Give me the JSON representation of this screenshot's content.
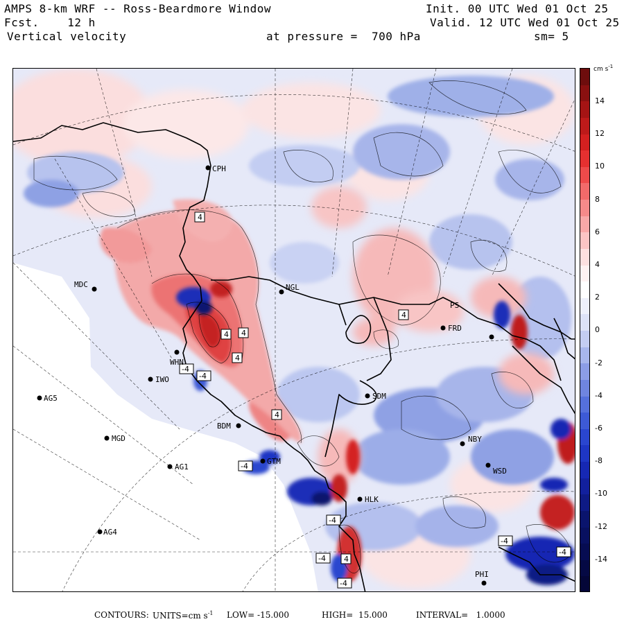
{
  "header": {
    "title": "AMPS 8-km WRF -- Ross-Beardmore Window",
    "init": "Init. 00 UTC Wed 01 Oct 25",
    "forecast": "Fcst.    12 h",
    "valid": "Valid. 12 UTC Wed 01 Oct 25",
    "field": "Vertical velocity",
    "pressure": "at pressure =  700 hPa",
    "smoothing": "sm= 5"
  },
  "colorbar": {
    "unit": "cm s",
    "unit_exp": "-1",
    "ticks": [
      "14",
      "12",
      "10",
      "8",
      "6",
      "4",
      "2",
      "0",
      "-2",
      "-4",
      "-6",
      "-8",
      "-10",
      "-12",
      "-14"
    ],
    "colors": [
      "#6e0d0d",
      "#8a1010",
      "#a51414",
      "#bd1a1a",
      "#d42020",
      "#e63030",
      "#ee4a4a",
      "#f26a6a",
      "#f58a8a",
      "#f8a8a8",
      "#fbc4c4",
      "#fde0e0",
      "#fff2f2",
      "#ffffff",
      "#eef0fb",
      "#dde2f7",
      "#c4cdf2",
      "#a8b6ec",
      "#8c9de6",
      "#6f85e0",
      "#5570dc",
      "#3d5ad6",
      "#2a46cf",
      "#1e36c4",
      "#1628b3",
      "#12209d",
      "#0e1a85",
      "#0a146d",
      "#081060",
      "#060c52",
      "#050944",
      "#040638"
    ]
  },
  "stations": [
    {
      "id": "CPH",
      "label": "CPH"
    },
    {
      "id": "NGL",
      "label": "NGL"
    },
    {
      "id": "MDC",
      "label": "MDC"
    },
    {
      "id": "FRD",
      "label": "FRD"
    },
    {
      "id": "WHN",
      "label": "WHN"
    },
    {
      "id": "IWO",
      "label": "IWO"
    },
    {
      "id": "AG5",
      "label": "AG5"
    },
    {
      "id": "SDM",
      "label": "SDM"
    },
    {
      "id": "BDM",
      "label": "BDM"
    },
    {
      "id": "MGD",
      "label": "MGD"
    },
    {
      "id": "GTM",
      "label": "GTM"
    },
    {
      "id": "NBY",
      "label": "NBY"
    },
    {
      "id": "AG1",
      "label": "AG1"
    },
    {
      "id": "WSD",
      "label": "WSD"
    },
    {
      "id": "HLK",
      "label": "HLK"
    },
    {
      "id": "AG4",
      "label": "AG4"
    },
    {
      "id": "PHI",
      "label": "PHI"
    },
    {
      "id": "PS",
      "label": "PS"
    }
  ],
  "contour_labels": [
    "4",
    "4",
    "4",
    "4",
    "4",
    "4",
    "-4",
    "-4",
    "-4",
    "-4",
    "-4",
    "-4",
    "-4",
    "4",
    "-4"
  ],
  "footer": {
    "contours": "CONTOURS:",
    "units": "UNITS=cm s",
    "units_exp": "-1",
    "low": "LOW= -15.000",
    "high": "HIGH=  15.000",
    "interval": "INTERVAL=   1.0000"
  }
}
